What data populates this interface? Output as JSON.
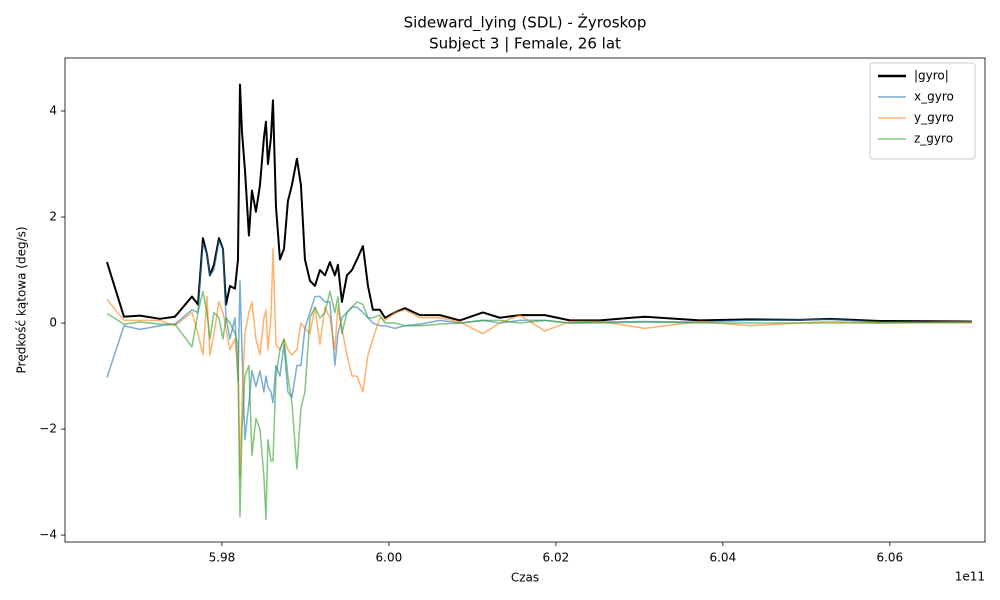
{
  "chart_data": {
    "type": "line",
    "title": "Sideward_lying (SDL) - Żyroskop",
    "subtitle": "Subject 3 | Female, 26 lat",
    "x_label": "Czas",
    "y_label": "Prędkość kątowa (deg/s)",
    "x_offset_label": "1e11",
    "xlim": [
      5.9612,
      6.0714
    ],
    "ylim": [
      -4.13,
      5.0
    ],
    "xticks": [
      5.98,
      {
        "value": 6.0,
        "label": "6.00"
      },
      6.02,
      6.04,
      6.06
    ],
    "yticks": [
      {
        "value": -4,
        "label": "−4"
      },
      {
        "value": -2,
        "label": "−2"
      },
      0,
      2,
      4
    ],
    "grid": false,
    "legend": "upper right",
    "x": [
      5.96623,
      5.96826,
      5.97018,
      5.97257,
      5.97437,
      5.97641,
      5.97713,
      5.97772,
      5.9782,
      5.97856,
      5.97904,
      5.97964,
      5.98012,
      5.98048,
      5.98096,
      5.98156,
      5.98192,
      5.98216,
      5.9824,
      5.98275,
      5.98323,
      5.98359,
      5.98407,
      5.98455,
      5.98503,
      5.98527,
      5.98551,
      5.98587,
      5.98611,
      5.98647,
      5.98695,
      5.98743,
      5.9879,
      5.98838,
      5.98898,
      5.98946,
      5.98994,
      5.99054,
      5.99114,
      5.99174,
      5.99234,
      5.99293,
      5.99353,
      5.99389,
      5.99437,
      5.99497,
      5.99557,
      5.99617,
      5.99689,
      5.99749,
      5.99808,
      5.99892,
      5.99952,
      6.00072,
      6.00192,
      6.00371,
      6.00611,
      6.0085,
      6.01126,
      6.01329,
      6.01569,
      6.01868,
      6.02168,
      6.02527,
      6.03066,
      6.03725,
      6.04323,
      6.04922,
      6.05281,
      6.0588,
      6.06982
    ],
    "series": [
      {
        "name": "|gyro|",
        "color": "#000000",
        "values": [
          1.15,
          0.12,
          0.14,
          0.08,
          0.12,
          0.5,
          0.35,
          1.6,
          1.3,
          0.9,
          1.1,
          1.6,
          1.4,
          0.35,
          0.7,
          0.65,
          1.2,
          4.5,
          3.6,
          2.9,
          1.65,
          2.5,
          2.1,
          2.6,
          3.5,
          3.8,
          3.0,
          3.5,
          4.2,
          2.2,
          1.2,
          1.4,
          2.3,
          2.6,
          3.1,
          2.6,
          1.2,
          0.8,
          0.7,
          1.0,
          0.9,
          1.15,
          0.9,
          1.1,
          0.4,
          0.9,
          1.0,
          1.2,
          1.45,
          0.7,
          0.25,
          0.25,
          0.1,
          0.2,
          0.28,
          0.15,
          0.15,
          0.05,
          0.2,
          0.1,
          0.15,
          0.15,
          0.05,
          0.05,
          0.12,
          0.05,
          0.07,
          0.06,
          0.08,
          0.04,
          0.03
        ]
      },
      {
        "name": "x_gyro",
        "color": "#1f77b4",
        "values": [
          -1.03,
          -0.05,
          -0.12,
          -0.05,
          -0.02,
          0.25,
          0.2,
          1.5,
          1.3,
          0.9,
          1.0,
          1.55,
          1.4,
          0.1,
          -0.3,
          0.1,
          -1.1,
          0.8,
          -0.5,
          -2.2,
          -1.5,
          -0.9,
          -1.2,
          -0.9,
          -1.3,
          -1.0,
          -1.2,
          -1.3,
          -1.5,
          -0.8,
          -1.0,
          -0.4,
          -1.3,
          -1.4,
          -0.8,
          -0.8,
          -0.1,
          0.2,
          0.5,
          0.5,
          0.4,
          0.4,
          -0.8,
          -0.2,
          0.1,
          0.2,
          0.3,
          0.3,
          0.2,
          0.1,
          0.0,
          -0.05,
          -0.05,
          -0.1,
          -0.05,
          -0.02,
          0.05,
          0.0,
          0.05,
          0.0,
          0.05,
          0.05,
          0.0,
          0.02,
          0.03,
          0.02,
          0.05,
          0.06,
          0.07,
          0.02,
          0.02
        ]
      },
      {
        "name": "y_gyro",
        "color": "#ff7f0e",
        "values": [
          0.45,
          0.05,
          0.05,
          0.05,
          -0.05,
          0.2,
          -0.2,
          -0.6,
          0.5,
          -0.6,
          -0.2,
          0.4,
          0.2,
          -0.1,
          -0.5,
          -0.3,
          -0.9,
          -2.9,
          -1.5,
          -0.2,
          0.2,
          0.4,
          -0.3,
          -0.6,
          0.1,
          0.25,
          -0.5,
          0.1,
          1.4,
          -0.4,
          -0.5,
          -0.3,
          -0.5,
          -0.6,
          -0.5,
          0.0,
          -0.1,
          -0.2,
          0.3,
          -0.4,
          0.3,
          0.1,
          -0.5,
          0.3,
          -0.1,
          -0.6,
          -1.0,
          -1.0,
          -1.3,
          -0.6,
          -0.3,
          0.1,
          0.05,
          0.2,
          0.25,
          0.1,
          0.1,
          0.02,
          -0.2,
          0.0,
          0.15,
          -0.15,
          0.03,
          0.03,
          -0.1,
          0.03,
          -0.05,
          0.0,
          0.03,
          0.0,
          0.0
        ]
      },
      {
        "name": "z_gyro",
        "color": "#2ca02c",
        "values": [
          0.18,
          -0.02,
          0.02,
          -0.02,
          -0.02,
          -0.45,
          0.2,
          0.6,
          0.2,
          -0.3,
          0.2,
          0.1,
          -0.3,
          0.1,
          0.0,
          -0.2,
          -0.4,
          -3.65,
          -2.0,
          -1.0,
          -0.8,
          -2.5,
          -1.8,
          -2.0,
          -2.9,
          -3.7,
          -2.2,
          -2.6,
          -2.6,
          -1.0,
          -0.5,
          -0.3,
          -1.0,
          -1.5,
          -2.75,
          -1.6,
          -1.3,
          0.1,
          0.3,
          0.1,
          0.2,
          0.6,
          0.2,
          0.5,
          -0.2,
          0.2,
          0.3,
          0.4,
          0.35,
          0.1,
          0.1,
          0.15,
          0.0,
          0.0,
          -0.05,
          -0.05,
          -0.02,
          0.0,
          0.05,
          0.05,
          0.0,
          0.05,
          0.0,
          0.0,
          0.02,
          0.0,
          0.0,
          0.0,
          0.0,
          0.0,
          0.03
        ]
      }
    ]
  }
}
